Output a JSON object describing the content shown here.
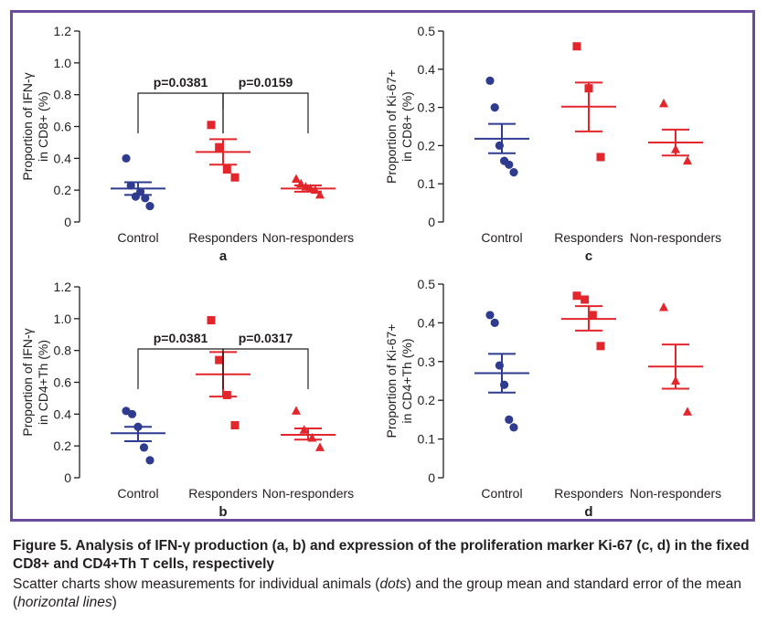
{
  "colors": {
    "frame": "#6a4a9c",
    "control": "#2e3b8f",
    "responders": "#e2262c",
    "non_responders": "#e2262c",
    "axis": "#231f20"
  },
  "caption": {
    "title": "Figure 5. Analysis of IFN-γ production (a, b) and expression of the proliferation marker Ki-67 (c, d) in the fixed CD8+ and CD4+Th T cells, respectively",
    "desc_1": "Scatter charts show measurements for individual animals (",
    "desc_em_1": "dots",
    "desc_2": ") and the group mean and standard error of the mean (",
    "desc_em_2": "horizontal lines",
    "desc_3": ")"
  },
  "chart_data": [
    {
      "type": "scatter",
      "panel_label": "a",
      "ylabel_line1": "Proportion of IFN-γ",
      "ylabel_line2": "in CD8+ (%)",
      "categories": [
        "Control",
        "Responders",
        "Non-responders"
      ],
      "ylim": [
        0,
        1.2
      ],
      "yticks": [
        "0",
        "0.2",
        "0.4",
        "0.6",
        "0.8",
        "1.0",
        "1.2"
      ],
      "yticks_values": [
        0,
        0.2,
        0.4,
        0.6,
        0.8,
        1.0,
        1.2
      ],
      "series": [
        {
          "category": "Control",
          "marker": "circle",
          "points": [
            0.4,
            0.23,
            0.16,
            0.19,
            0.15,
            0.1
          ],
          "mean": 0.21,
          "sem": [
            0.17,
            0.25
          ]
        },
        {
          "category": "Responders",
          "marker": "square",
          "points": [
            0.61,
            0.47,
            0.33,
            0.28
          ],
          "mean": 0.44,
          "sem": [
            0.36,
            0.52
          ]
        },
        {
          "category": "Non-responders",
          "marker": "triangle",
          "points": [
            0.27,
            0.24,
            0.22,
            0.21,
            0.2,
            0.17
          ],
          "mean": 0.21,
          "sem": [
            0.19,
            0.23
          ]
        }
      ],
      "pvalues": [
        {
          "label": "p=0.0381",
          "from": "Control",
          "to": "Responders"
        },
        {
          "label": "p=0.0159",
          "from": "Responders",
          "to": "Non-responders"
        }
      ]
    },
    {
      "type": "scatter",
      "panel_label": "c",
      "ylabel_line1": "Proportion of Ki-67+",
      "ylabel_line2": "in CD8+ (%)",
      "categories": [
        "Control",
        "Responders",
        "Non-responders"
      ],
      "ylim": [
        0,
        0.5
      ],
      "yticks": [
        "0",
        "0.1",
        "0.2",
        "0.3",
        "0.4",
        "0.5"
      ],
      "yticks_values": [
        0,
        0.1,
        0.2,
        0.3,
        0.4,
        0.5
      ],
      "series": [
        {
          "category": "Control",
          "marker": "circle",
          "points": [
            0.37,
            0.3,
            0.2,
            0.16,
            0.15,
            0.13
          ],
          "mean": 0.218,
          "sem": [
            0.18,
            0.257
          ]
        },
        {
          "category": "Responders",
          "marker": "square",
          "points": [
            0.46,
            0.35,
            0.17
          ],
          "mean": 0.302,
          "sem": [
            0.237,
            0.365
          ]
        },
        {
          "category": "Non-responders",
          "marker": "triangle",
          "points": [
            0.31,
            0.19,
            0.16
          ],
          "mean": 0.208,
          "sem": [
            0.174,
            0.242
          ]
        }
      ],
      "pvalues": []
    },
    {
      "type": "scatter",
      "panel_label": "b",
      "ylabel_line1": "Proportion of IFN-γ",
      "ylabel_line2": "in CD4+Th (%)",
      "categories": [
        "Control",
        "Responders",
        "Non-responders"
      ],
      "ylim": [
        0,
        1.2
      ],
      "yticks": [
        "0",
        "0.2",
        "0.4",
        "0.6",
        "0.8",
        "1.0",
        "1.2"
      ],
      "yticks_values": [
        0,
        0.2,
        0.4,
        0.6,
        0.8,
        1.0,
        1.2
      ],
      "series": [
        {
          "category": "Control",
          "marker": "circle",
          "points": [
            0.42,
            0.4,
            0.32,
            0.19,
            0.11
          ],
          "mean": 0.28,
          "sem": [
            0.23,
            0.32
          ]
        },
        {
          "category": "Responders",
          "marker": "square",
          "points": [
            0.99,
            0.74,
            0.52,
            0.33
          ],
          "mean": 0.65,
          "sem": [
            0.51,
            0.79
          ]
        },
        {
          "category": "Non-responders",
          "marker": "triangle",
          "points": [
            0.42,
            0.3,
            0.25,
            0.19
          ],
          "mean": 0.27,
          "sem": [
            0.24,
            0.31
          ]
        }
      ],
      "pvalues": [
        {
          "label": "p=0.0381",
          "from": "Control",
          "to": "Responders"
        },
        {
          "label": "p=0.0317",
          "from": "Responders",
          "to": "Non-responders"
        }
      ]
    },
    {
      "type": "scatter",
      "panel_label": "d",
      "ylabel_line1": "Proportion of Ki-67+",
      "ylabel_line2": "in CD4+Th (%)",
      "categories": [
        "Control",
        "Responders",
        "Non-responders"
      ],
      "ylim": [
        0,
        0.5
      ],
      "yticks": [
        "0",
        "0.1",
        "0.2",
        "0.3",
        "0.4",
        "0.5"
      ],
      "yticks_values": [
        0,
        0.1,
        0.2,
        0.3,
        0.4,
        0.5
      ],
      "series": [
        {
          "category": "Control",
          "marker": "circle",
          "points": [
            0.42,
            0.4,
            0.29,
            0.24,
            0.15,
            0.13
          ],
          "mean": 0.27,
          "sem": [
            0.22,
            0.32
          ]
        },
        {
          "category": "Responders",
          "marker": "square",
          "points": [
            0.47,
            0.46,
            0.42,
            0.34
          ],
          "mean": 0.41,
          "sem": [
            0.38,
            0.443
          ]
        },
        {
          "category": "Non-responders",
          "marker": "triangle",
          "points": [
            0.44,
            0.25,
            0.17
          ],
          "mean": 0.287,
          "sem": [
            0.23,
            0.344
          ]
        }
      ],
      "pvalues": []
    }
  ]
}
